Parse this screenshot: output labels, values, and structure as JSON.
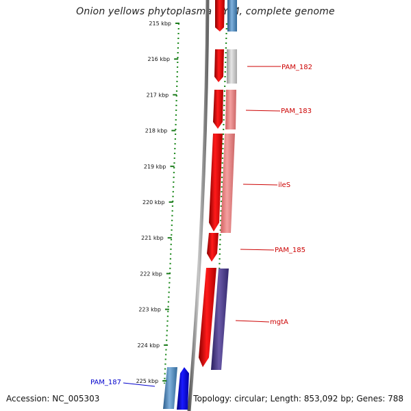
{
  "title": "Onion yellows phytoplasma OY-M, complete genome",
  "footer": {
    "accession": "Accession: NC_005303",
    "topology": "Topology: circular; Length: 853,092 bp; Genes: 788"
  },
  "ticks": [
    "215 kbp",
    "216 kbp",
    "217 kbp",
    "218 kbp",
    "219 kbp",
    "220 kbp",
    "221 kbp",
    "222 kbp",
    "223 kbp",
    "224 kbp",
    "225 kbp"
  ],
  "gene_labels": [
    {
      "id": "pam182",
      "text": "PAM_182",
      "color": "#cc0000"
    },
    {
      "id": "pam183",
      "text": "PAM_183",
      "color": "#cc0000"
    },
    {
      "id": "iles",
      "text": "ileS",
      "color": "#cc0000"
    },
    {
      "id": "pam185",
      "text": "PAM_185",
      "color": "#cc0000"
    },
    {
      "id": "mgta",
      "text": "mgtA",
      "color": "#cc0000"
    },
    {
      "id": "pam187",
      "text": "PAM_187",
      "color": "#0000cc"
    }
  ],
  "colors": {
    "forward_strand": "#e8000b",
    "reverse_strand": "#0000e0",
    "backbone": "#888888",
    "tick": "#1a7a1a",
    "dotted_ring": "#1f8a1f"
  }
}
